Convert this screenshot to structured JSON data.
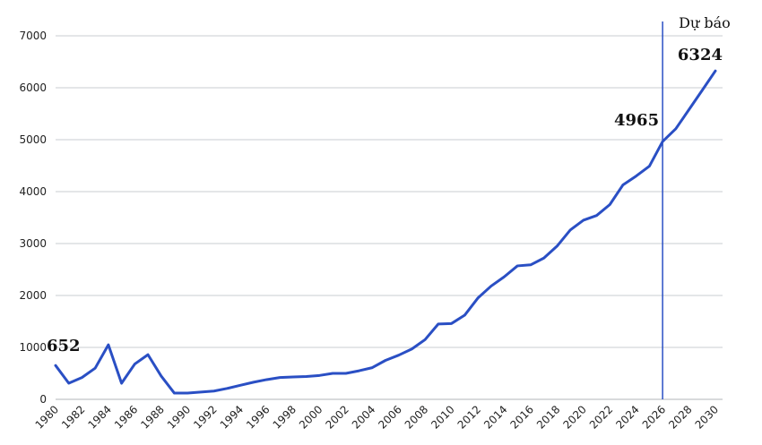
{
  "chart_data": {
    "type": "line",
    "title": "",
    "xlabel": "",
    "ylabel": "",
    "xlim": [
      1980,
      2030
    ],
    "ylim": [
      0,
      7000
    ],
    "y_ticks": [
      0,
      1000,
      2000,
      3000,
      4000,
      5000,
      6000,
      7000
    ],
    "y_tick_labels": [
      "0",
      "1000",
      "2000",
      "3000",
      "4000",
      "5000",
      "6000",
      "7000"
    ],
    "x_tick_labels": [
      "1980",
      "1982",
      "1984",
      "1986",
      "1988",
      "1990",
      "1992",
      "1994",
      "1996",
      "1998",
      "2000",
      "2002",
      "2004",
      "2006",
      "2008",
      "2010",
      "2012",
      "2014",
      "2016",
      "2018",
      "2020",
      "2022",
      "2024",
      "2026",
      "2028",
      "2030"
    ],
    "grid": "horizontal",
    "series_color": "#2a4fc4",
    "forecast": {
      "x": 2026,
      "label": "Dự báo",
      "line_color": "#2a4fc4"
    },
    "annotations": [
      {
        "x": 1980,
        "y": 652,
        "label": "652"
      },
      {
        "x": 2026,
        "y": 4965,
        "label": "4965"
      },
      {
        "x": 2030,
        "y": 6324,
        "label": "6324"
      }
    ],
    "x": [
      1980,
      1981,
      1982,
      1983,
      1984,
      1985,
      1986,
      1987,
      1988,
      1989,
      1990,
      1991,
      1992,
      1993,
      1994,
      1995,
      1996,
      1997,
      1998,
      1999,
      2000,
      2001,
      2002,
      2003,
      2004,
      2005,
      2006,
      2007,
      2008,
      2009,
      2010,
      2011,
      2012,
      2013,
      2014,
      2015,
      2016,
      2017,
      2018,
      2019,
      2020,
      2021,
      2022,
      2023,
      2024,
      2025,
      2026,
      2027,
      2028,
      2029,
      2030
    ],
    "series": [
      {
        "values": [
          652,
          310,
          420,
          600,
          1050,
          310,
          680,
          860,
          450,
          120,
          120,
          140,
          160,
          210,
          270,
          330,
          380,
          420,
          430,
          440,
          460,
          500,
          500,
          550,
          610,
          750,
          850,
          970,
          1150,
          1450,
          1460,
          1620,
          1950,
          2180,
          2360,
          2570,
          2590,
          2720,
          2950,
          3260,
          3450,
          3540,
          3750,
          4130,
          4300,
          4490,
          4965,
          5210,
          5580,
          5950,
          6324
        ]
      }
    ]
  }
}
